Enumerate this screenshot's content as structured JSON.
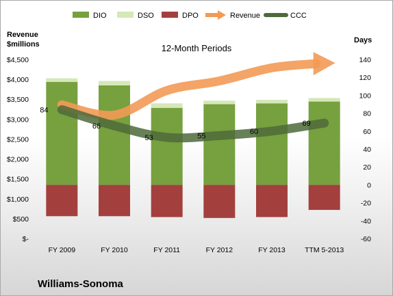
{
  "chart_data": {
    "type": "bar",
    "title": "12-Month Periods",
    "company": "Williams-Sonoma",
    "categories": [
      "FY 2009",
      "FY 2010",
      "FY 2011",
      "FY 2012",
      "FY 2013",
      "TTM 5-2013"
    ],
    "left_axis": {
      "label_line1": "Revenue",
      "label_line2": "$millions",
      "ylim": [
        0,
        4500
      ],
      "ticks": [
        0,
        500,
        1000,
        1500,
        2000,
        2500,
        3000,
        3500,
        4000,
        4500
      ],
      "tick_labels": [
        "$-",
        "$500",
        "$1,000",
        "$1,500",
        "$2,000",
        "$2,500",
        "$3,000",
        "$3,500",
        "$4,000",
        "$4,500"
      ]
    },
    "right_axis": {
      "label": "Days",
      "ylim": [
        -60,
        140
      ],
      "ticks": [
        -60,
        -40,
        -20,
        0,
        20,
        40,
        60,
        80,
        100,
        120,
        140
      ],
      "tick_labels": [
        "-60",
        "-40",
        "-20",
        "0",
        "20",
        "40",
        "60",
        "80",
        "100",
        "120",
        "140"
      ]
    },
    "series": [
      {
        "name": "DIO",
        "axis": "right",
        "type": "bar",
        "color": "#77a03e",
        "values": [
          115,
          111,
          86,
          90,
          91,
          93
        ]
      },
      {
        "name": "DSO",
        "axis": "right",
        "type": "bar",
        "color": "#d5e8b8",
        "values": [
          4,
          5,
          5,
          4,
          4,
          4
        ]
      },
      {
        "name": "DPO",
        "axis": "right",
        "type": "bar",
        "color": "#a3403e",
        "values": [
          -35,
          -35,
          -36,
          -37,
          -36,
          -28
        ]
      },
      {
        "name": "Revenue",
        "axis": "left",
        "type": "arrow",
        "color": "#f29a55",
        "values": [
          3360,
          3104,
          3720,
          3960,
          4290,
          4395
        ]
      },
      {
        "name": "CCC",
        "axis": "right",
        "type": "line",
        "color": "#4e6a3a",
        "values": [
          84,
          66,
          53,
          55,
          60,
          69
        ]
      }
    ],
    "ccc_labels": [
      "84",
      "66",
      "53",
      "55",
      "60",
      "69"
    ],
    "legend_position": "top",
    "grid": false
  }
}
